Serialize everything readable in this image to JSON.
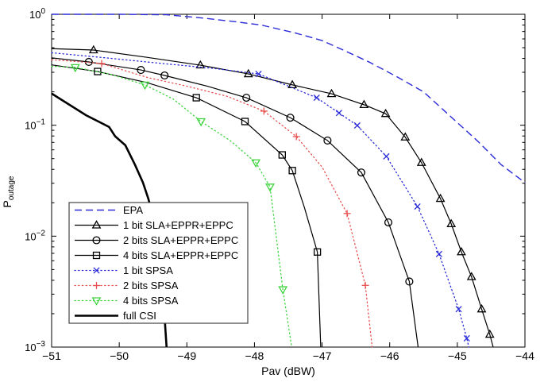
{
  "figure": {
    "background": "#ffffff",
    "axis_color": "#000000",
    "legend_border_color": "#444444"
  },
  "chart_data": {
    "type": "line",
    "title": "",
    "xlabel": "Pav (dBW)",
    "ylabel": "P_outage",
    "ylabel_base": "P",
    "ylabel_sub": "outage",
    "x_axis": {
      "min": -51,
      "max": -44,
      "ticks": [
        -51,
        -50,
        -49,
        -48,
        -47,
        -46,
        -45,
        -44
      ],
      "tick_labels": [
        "−51",
        "−50",
        "−49",
        "−48",
        "−47",
        "−46",
        "−45",
        "−44"
      ]
    },
    "y_axis": {
      "scale": "log",
      "min": 0.001,
      "max": 1,
      "tick_values": [
        1,
        0.1,
        0.01,
        0.001
      ],
      "tick_labels": [
        {
          "base": "10",
          "exp": "0"
        },
        {
          "base": "10",
          "exp": "−1"
        },
        {
          "base": "10",
          "exp": "−2"
        },
        {
          "base": "10",
          "exp": "−3"
        }
      ]
    },
    "legend": {
      "position": "bottom-left",
      "entries": [
        "EPA",
        "1 bit SLA+EPPR+EPPC",
        "2 bits SLA+EPPR+EPPC",
        "4 bits SLA+EPPR+EPPC",
        "1 bit SPSA",
        "2 bits SPSA",
        "4 bits SPSA",
        "full CSI"
      ]
    },
    "series": [
      {
        "name": "EPA",
        "color": "#2a2ad8",
        "line": "dashed",
        "width": 1.4,
        "marker": "none",
        "points": [
          [
            -51,
            1.0
          ],
          [
            -50,
            1.0
          ],
          [
            -49.3,
            0.99
          ],
          [
            -48.8,
            0.93
          ],
          [
            -48.3,
            0.86
          ],
          [
            -47.9,
            0.8
          ],
          [
            -47.4,
            0.68
          ],
          [
            -47.0,
            0.58
          ],
          [
            -46.7,
            0.48
          ],
          [
            -46.3,
            0.37
          ],
          [
            -45.9,
            0.275
          ],
          [
            -45.5,
            0.2
          ],
          [
            -45.1,
            0.12
          ],
          [
            -44.7,
            0.072
          ],
          [
            -44.35,
            0.044
          ],
          [
            -44.0,
            0.0304
          ]
        ],
        "marker_points": []
      },
      {
        "name": "1 bit SLA+EPPR+EPPC",
        "color": "#000000",
        "line": "solid",
        "width": 1.2,
        "marker": "triangle-up",
        "points": [
          [
            -51,
            0.49
          ],
          [
            -50.38,
            0.476
          ],
          [
            -49.6,
            0.41
          ],
          [
            -48.8,
            0.348
          ],
          [
            -48.09,
            0.29
          ],
          [
            -47.44,
            0.231
          ],
          [
            -46.86,
            0.192
          ],
          [
            -46.38,
            0.153
          ],
          [
            -46.06,
            0.127
          ],
          [
            -45.77,
            0.078
          ],
          [
            -45.53,
            0.046
          ],
          [
            -45.25,
            0.0218
          ],
          [
            -45.09,
            0.0129
          ],
          [
            -44.94,
            0.0072
          ],
          [
            -44.79,
            0.0043
          ],
          [
            -44.64,
            0.0022
          ],
          [
            -44.52,
            0.0013
          ],
          [
            -44.47,
            0.001
          ]
        ],
        "marker_points": [
          [
            -50.38,
            0.476
          ],
          [
            -48.8,
            0.348
          ],
          [
            -48.09,
            0.29
          ],
          [
            -47.44,
            0.231
          ],
          [
            -46.86,
            0.192
          ],
          [
            -46.38,
            0.153
          ],
          [
            -46.06,
            0.127
          ],
          [
            -45.77,
            0.078
          ],
          [
            -45.53,
            0.046
          ],
          [
            -45.25,
            0.0218
          ],
          [
            -45.09,
            0.0129
          ],
          [
            -44.94,
            0.0072
          ],
          [
            -44.79,
            0.0043
          ],
          [
            -44.64,
            0.0022
          ],
          [
            -44.52,
            0.0013
          ]
        ]
      },
      {
        "name": "2 bits SLA+EPPR+EPPC",
        "color": "#000000",
        "line": "solid",
        "width": 1.2,
        "marker": "circle",
        "points": [
          [
            -51,
            0.405
          ],
          [
            -50.45,
            0.372
          ],
          [
            -49.68,
            0.315
          ],
          [
            -49.33,
            0.281
          ],
          [
            -48.7,
            0.225
          ],
          [
            -48.12,
            0.177
          ],
          [
            -47.47,
            0.117
          ],
          [
            -46.92,
            0.0728
          ],
          [
            -46.42,
            0.0375
          ],
          [
            -46.02,
            0.0133
          ],
          [
            -45.71,
            0.0039
          ],
          [
            -45.58,
            0.001
          ]
        ],
        "marker_points": [
          [
            -50.45,
            0.372
          ],
          [
            -49.68,
            0.315
          ],
          [
            -49.33,
            0.281
          ],
          [
            -48.12,
            0.177
          ],
          [
            -47.47,
            0.117
          ],
          [
            -46.92,
            0.0728
          ],
          [
            -46.42,
            0.0375
          ],
          [
            -46.02,
            0.0133
          ],
          [
            -45.71,
            0.0039
          ]
        ]
      },
      {
        "name": "4 bits SLA+EPPR+EPPC",
        "color": "#000000",
        "line": "solid",
        "width": 1.2,
        "marker": "square",
        "points": [
          [
            -51,
            0.35
          ],
          [
            -50.32,
            0.305
          ],
          [
            -49.6,
            0.243
          ],
          [
            -48.86,
            0.177
          ],
          [
            -48.14,
            0.108
          ],
          [
            -47.59,
            0.054
          ],
          [
            -47.44,
            0.039
          ],
          [
            -47.26,
            0.018
          ],
          [
            -47.07,
            0.0072
          ],
          [
            -47.02,
            0.001
          ]
        ],
        "marker_points": [
          [
            -50.32,
            0.305
          ],
          [
            -48.86,
            0.177
          ],
          [
            -48.14,
            0.108
          ],
          [
            -47.59,
            0.054
          ],
          [
            -47.44,
            0.039
          ],
          [
            -47.07,
            0.0072
          ]
        ]
      },
      {
        "name": "1 bit SPSA",
        "color": "#2a2ad8",
        "line": "dotted",
        "width": 1.3,
        "marker": "x",
        "points": [
          [
            -51,
            0.45
          ],
          [
            -50.2,
            0.405
          ],
          [
            -49.4,
            0.362
          ],
          [
            -48.6,
            0.325
          ],
          [
            -47.94,
            0.29
          ],
          [
            -47.08,
            0.177
          ],
          [
            -46.75,
            0.129
          ],
          [
            -46.48,
            0.0995
          ],
          [
            -46.05,
            0.0524
          ],
          [
            -45.59,
            0.0185
          ],
          [
            -45.27,
            0.0069
          ],
          [
            -44.98,
            0.0022
          ],
          [
            -44.86,
            0.0012
          ],
          [
            -44.83,
            0.001
          ]
        ],
        "marker_points": [
          [
            -47.94,
            0.29
          ],
          [
            -47.08,
            0.177
          ],
          [
            -46.75,
            0.129
          ],
          [
            -46.48,
            0.0995
          ],
          [
            -46.05,
            0.0524
          ],
          [
            -45.59,
            0.0185
          ],
          [
            -45.27,
            0.0069
          ],
          [
            -44.98,
            0.0022
          ],
          [
            -44.86,
            0.0012
          ]
        ]
      },
      {
        "name": "2 bits SPSA",
        "color": "#e85050",
        "line": "dotted",
        "width": 1.3,
        "marker": "plus",
        "points": [
          [
            -51,
            0.39
          ],
          [
            -50.26,
            0.36
          ],
          [
            -49.57,
            0.268
          ],
          [
            -49.0,
            0.225
          ],
          [
            -48.4,
            0.182
          ],
          [
            -47.86,
            0.134
          ],
          [
            -47.38,
            0.079
          ],
          [
            -47.0,
            0.042
          ],
          [
            -46.63,
            0.016
          ],
          [
            -46.36,
            0.0036
          ],
          [
            -46.26,
            0.001
          ]
        ],
        "marker_points": [
          [
            -50.26,
            0.36
          ],
          [
            -47.86,
            0.134
          ],
          [
            -47.38,
            0.079
          ],
          [
            -46.63,
            0.016
          ],
          [
            -46.36,
            0.0036
          ]
        ]
      },
      {
        "name": "4 bits SPSA",
        "color": "#3fd43f",
        "line": "dotted",
        "width": 1.3,
        "marker": "triangle-down",
        "points": [
          [
            -51,
            0.34
          ],
          [
            -50.65,
            0.332
          ],
          [
            -50.1,
            0.285
          ],
          [
            -49.62,
            0.231
          ],
          [
            -49.2,
            0.172
          ],
          [
            -48.79,
            0.108
          ],
          [
            -48.35,
            0.072
          ],
          [
            -47.98,
            0.046
          ],
          [
            -47.77,
            0.0278
          ],
          [
            -47.58,
            0.0033
          ],
          [
            -47.45,
            0.001
          ]
        ],
        "marker_points": [
          [
            -50.65,
            0.332
          ],
          [
            -49.62,
            0.231
          ],
          [
            -48.79,
            0.108
          ],
          [
            -47.98,
            0.046
          ],
          [
            -47.77,
            0.0278
          ],
          [
            -47.58,
            0.0033
          ]
        ]
      },
      {
        "name": "full CSI",
        "color": "#000000",
        "line": "solid",
        "width": 2.6,
        "marker": "none",
        "points": [
          [
            -51,
            0.193
          ],
          [
            -50.49,
            0.123
          ],
          [
            -50.15,
            0.0965
          ],
          [
            -50.06,
            0.0794
          ],
          [
            -49.91,
            0.066
          ],
          [
            -49.77,
            0.0444
          ],
          [
            -49.65,
            0.0305
          ],
          [
            -49.57,
            0.0218
          ],
          [
            -49.45,
            0.0115
          ],
          [
            -49.38,
            0.0048
          ],
          [
            -49.33,
            0.0019
          ],
          [
            -49.3,
            0.001
          ]
        ],
        "marker_points": []
      }
    ]
  }
}
